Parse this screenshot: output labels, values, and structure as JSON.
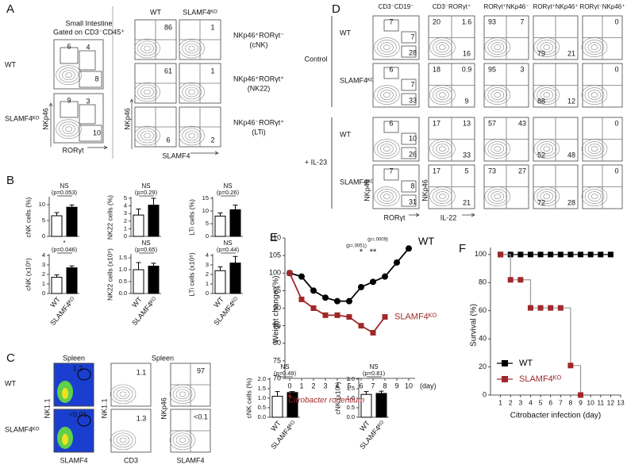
{
  "figure": {
    "panel_labels": [
      "A",
      "B",
      "C",
      "D",
      "E",
      "F"
    ],
    "A": {
      "left_title": [
        "Small Intestine",
        "Gated on CD3⁻CD45⁺"
      ],
      "rows": [
        "WT",
        "SLAMF4ᴷᴼ"
      ],
      "left_numbers": [
        [
          "6",
          "4",
          "8"
        ],
        [
          "9",
          "3",
          "10"
        ]
      ],
      "left_axes": [
        "NKp46",
        "RORγt"
      ],
      "columns": [
        "WT",
        "SLAMF4ᴷᴼ"
      ],
      "gates": [
        [
          "NKp46⁺RORγt⁻",
          "(cNK)"
        ],
        [
          "NKp46⁺RORγt⁺",
          "(NK22)"
        ],
        [
          "NKp46⁻RORγt⁺",
          "(LTi)"
        ]
      ],
      "grid_numbers": [
        [
          "86",
          "1"
        ],
        [
          "61",
          "1"
        ],
        [
          "6",
          "2"
        ]
      ],
      "grid_axes": [
        "NKp46",
        "SLAMF4"
      ]
    },
    "C": {
      "titles": [
        "Spleen",
        "Spleen"
      ],
      "rows": [
        "WT",
        "SLAMF4ᴷᴼ"
      ],
      "numbers": [
        [
          "1.2",
          "1.1",
          "97"
        ],
        [
          "<0.01",
          "1.3",
          "<0.1"
        ]
      ],
      "y_axes": [
        "NK1.1",
        "NK1.1",
        "NKp46"
      ],
      "x_axes": [
        "SLAMF4",
        "CD3",
        "SLAMF4"
      ]
    },
    "D": {
      "headers": [
        "CD3⁻CD19⁻",
        "CD3⁻RORγt⁺",
        "RORγt⁺NKp46⁻",
        "RORγt⁺NKp46⁺",
        "RORγt⁻NKp46⁺"
      ],
      "groups": [
        "Control",
        "+ IL-23"
      ],
      "rows": [
        "WT",
        "SLAMF4ᴷᴼ",
        "WT",
        "SLAMF4ᴷᴼ"
      ],
      "numbers": [
        [
          [
            "7",
            "7",
            "28"
          ],
          [
            "20",
            "1.6",
            "16"
          ],
          [
            "93",
            "7"
          ],
          [
            "79",
            "21"
          ],
          [
            "0"
          ]
        ],
        [
          [
            "6",
            "7",
            "33"
          ],
          [
            "18",
            "0.9",
            "9"
          ],
          [
            "95",
            "3"
          ],
          [
            "88",
            "12"
          ],
          [
            "0"
          ]
        ],
        [
          [
            "6",
            "10",
            "26"
          ],
          [
            "17",
            "13",
            "33"
          ],
          [
            "57",
            "43"
          ],
          [
            "52",
            "48"
          ],
          [
            "0"
          ]
        ],
        [
          [
            "7",
            "8",
            "31"
          ],
          [
            "17",
            "5",
            "21"
          ],
          [
            "73",
            "27"
          ],
          [
            "72",
            "28"
          ],
          [
            "0"
          ]
        ]
      ],
      "y_axes": [
        "NKp46",
        "NKp46"
      ],
      "x_axes": [
        "RORγt",
        "IL-22"
      ]
    }
  },
  "chart_data": [
    {
      "type": "bar",
      "ylabel": "cNK cells (%)",
      "annotations": [
        "NS",
        "(p=0.053)"
      ],
      "values": [
        6.5,
        9.2
      ],
      "errors": [
        1.0,
        0.7
      ],
      "colors": [
        "#ffffff",
        "#000000"
      ],
      "ylim": [
        0,
        12
      ],
      "yticks": [
        0,
        5,
        10
      ]
    },
    {
      "type": "bar",
      "ylabel": "NK22 cells (%)",
      "annotations": [
        "NS",
        "(p=0.29)"
      ],
      "values": [
        2.8,
        4.1
      ],
      "errors": [
        0.8,
        0.9
      ],
      "colors": [
        "#ffffff",
        "#000000"
      ],
      "ylim": [
        0,
        5
      ],
      "yticks": [
        0,
        1,
        2,
        3,
        4,
        5
      ]
    },
    {
      "type": "bar",
      "ylabel": "LTi cells (%)",
      "annotations": [
        "NS",
        "(p=0.26)"
      ],
      "values": [
        8,
        10.5
      ],
      "errors": [
        1.2,
        1.8
      ],
      "colors": [
        "#ffffff",
        "#000000"
      ],
      "ylim": [
        0,
        15
      ],
      "yticks": [
        0,
        5,
        10,
        15
      ]
    },
    {
      "type": "bar",
      "ylabel": "cNK (x10⁵)",
      "annotations": [
        "*",
        "(p=0.046)"
      ],
      "categories": [
        "WT",
        "SLAMF4ᴷᴼ"
      ],
      "values": [
        1.7,
        2.7
      ],
      "errors": [
        0.25,
        0.2
      ],
      "colors": [
        "#ffffff",
        "#000000"
      ],
      "ylim": [
        0,
        4
      ],
      "yticks": [
        0,
        1,
        2,
        3,
        4
      ]
    },
    {
      "type": "bar",
      "ylabel": "NK22 cells (x10⁵)",
      "annotations": [
        "NS",
        "(p=0.65)"
      ],
      "categories": [
        "WT",
        "SLAMF4ᴷᴼ"
      ],
      "values": [
        1.0,
        1.15
      ],
      "errors": [
        0.3,
        0.12
      ],
      "colors": [
        "#ffffff",
        "#000000"
      ],
      "ylim": [
        0,
        1.6
      ],
      "yticks": [
        {
          "value": 0,
          "label": "0.0"
        },
        {
          "value": 0.5,
          "label": "0.5"
        },
        {
          "value": 1,
          "label": "1.0"
        },
        {
          "value": 1.5,
          "label": "1.5"
        }
      ]
    },
    {
      "type": "bar",
      "ylabel": "LTi cells (x10⁵)",
      "annotations": [
        "NS",
        "(p=0.44)"
      ],
      "categories": [
        "WT",
        "SLAMF4ᴷᴼ"
      ],
      "values": [
        2.4,
        3.2
      ],
      "errors": [
        0.4,
        0.7
      ],
      "colors": [
        "#ffffff",
        "#000000"
      ],
      "ylim": [
        0,
        4
      ],
      "yticks": [
        0,
        1,
        2,
        3,
        4
      ]
    },
    {
      "type": "bar",
      "ylabel": "cNK cells (%)",
      "annotations": [
        "NS",
        "(p=0.49)"
      ],
      "categories": [
        "WT",
        "SLAMF4ᴷᴼ"
      ],
      "values": [
        1.1,
        1.3
      ],
      "errors": [
        0.25,
        0.05
      ],
      "colors": [
        "#ffffff",
        "#000000"
      ],
      "ylim": [
        0,
        2
      ],
      "yticks": [
        {
          "value": 0,
          "label": "0.0"
        },
        {
          "value": 0.5,
          "label": "0.5"
        },
        {
          "value": 1,
          "label": "1.0"
        },
        {
          "value": 1.5,
          "label": "1.5"
        },
        {
          "value": 2,
          "label": "2.0"
        }
      ]
    },
    {
      "type": "bar",
      "ylabel": "cNK (x10⁶)",
      "annotations": [
        "NS",
        "(p=0.81)"
      ],
      "categories": [
        "WT",
        "SLAMF4ᴷᴼ"
      ],
      "values": [
        1.2,
        1.25
      ],
      "errors": [
        0.15,
        0.12
      ],
      "colors": [
        "#ffffff",
        "#000000"
      ],
      "ylim": [
        0,
        2
      ],
      "yticks": [
        {
          "value": 0,
          "label": "0.0"
        },
        {
          "value": 0.5,
          "label": "0.5"
        },
        {
          "value": 1,
          "label": "1.0"
        },
        {
          "value": 1.5,
          "label": "1.5"
        },
        {
          "value": 2,
          "label": "2.0"
        }
      ]
    },
    {
      "type": "line",
      "ylabel": "Weight change (%)",
      "xlabel": "(day)",
      "subtitle": "Citrobacter rodentium",
      "annotations": [
        "(p=.0051)",
        "(p=.0009)",
        "*",
        "**"
      ],
      "x": [
        0,
        1,
        2,
        3,
        4,
        5,
        6,
        7,
        8,
        9,
        10
      ],
      "xlim": [
        0,
        10
      ],
      "xticks": [
        0,
        1,
        2,
        3,
        4,
        5,
        6,
        7,
        8,
        9,
        10
      ],
      "ylim": [
        70,
        110
      ],
      "yticks": [
        70,
        75,
        80,
        85,
        90,
        95,
        100,
        105,
        110
      ],
      "series": [
        {
          "name": "WT",
          "color": "#000000",
          "values": [
            100,
            99,
            95,
            93,
            92,
            92,
            96,
            97.5,
            99,
            103,
            107
          ]
        },
        {
          "name": "SLAMF4ᴷᴼ",
          "color": "#a0282a",
          "values": [
            100,
            92.5,
            90,
            88,
            88,
            87.5,
            85,
            83,
            87.5,
            null,
            null
          ]
        }
      ]
    },
    {
      "type": "step",
      "ylabel": "Survival (%)",
      "xlabel": "Citrobacter infection (day)",
      "legend": "lower left",
      "x": [
        1,
        2,
        3,
        4,
        5,
        6,
        7,
        8,
        9,
        10,
        11,
        12
      ],
      "xlim": [
        0,
        13
      ],
      "xticks": [
        1,
        2,
        3,
        4,
        5,
        6,
        7,
        8,
        9,
        10,
        11,
        12,
        13
      ],
      "ylim": [
        0,
        105
      ],
      "yticks": [
        0,
        20,
        40,
        60,
        80,
        100
      ],
      "series": [
        {
          "name": "WT",
          "color": "#000000",
          "values": [
            100,
            100,
            100,
            100,
            100,
            100,
            100,
            100,
            100,
            100,
            100,
            100
          ]
        },
        {
          "name": "SLAMF4ᴷᴼ",
          "color": "#a0282a",
          "values": [
            100,
            82,
            82,
            62,
            62,
            62,
            62,
            21,
            0,
            null,
            null,
            null
          ]
        }
      ]
    }
  ]
}
